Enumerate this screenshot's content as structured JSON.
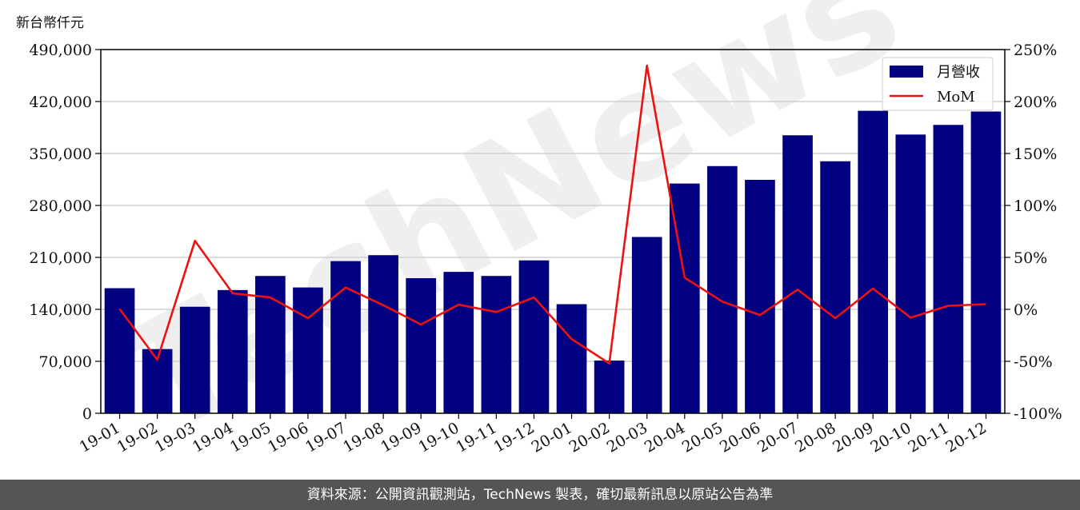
{
  "unit_label": "新台幣仟元",
  "footer_text": "資料來源：公開資訊觀測站，TechNews 製表，確切最新訊息以原站公告為準",
  "watermark_text": "TechNews",
  "colors": {
    "bar": "#000080",
    "line": "#ee1111",
    "grid": "#d0d0d0",
    "footer_bg": "#555555"
  },
  "chart_data": {
    "type": "bar",
    "categories": [
      "19-01",
      "19-02",
      "19-03",
      "19-04",
      "19-05",
      "19-06",
      "19-07",
      "19-08",
      "19-09",
      "19-10",
      "19-11",
      "19-12",
      "20-01",
      "20-02",
      "20-03",
      "20-04",
      "20-05",
      "20-06",
      "20-07",
      "20-08",
      "20-09",
      "20-10",
      "20-11",
      "20-12"
    ],
    "series": [
      {
        "name": "月營收",
        "type": "bar",
        "axis": "left",
        "values": [
          168500,
          86500,
          143500,
          166000,
          185000,
          169500,
          205000,
          213000,
          182000,
          190500,
          185000,
          206000,
          147000,
          71000,
          237500,
          309500,
          333000,
          314500,
          374500,
          339500,
          407500,
          375500,
          388500,
          406500
        ]
      },
      {
        "name": "MoM",
        "type": "line",
        "axis": "right",
        "values": [
          0.5,
          -48.5,
          66,
          15.5,
          11.5,
          -8.5,
          21,
          4,
          -14.5,
          4.5,
          -2.5,
          11.5,
          -28.5,
          -52,
          234.5,
          30.5,
          7.5,
          -5.5,
          19,
          -8.5,
          20,
          -8,
          3.5,
          5
        ]
      }
    ],
    "yleft": {
      "ylim": [
        0,
        490000
      ],
      "ticks": [
        "0",
        "70,000",
        "140,000",
        "210,000",
        "280,000",
        "350,000",
        "420,000",
        "490,000"
      ]
    },
    "yright": {
      "ylim": [
        -100,
        250
      ],
      "ticks": [
        "-100%",
        "-50%",
        "0%",
        "50%",
        "100%",
        "150%",
        "200%",
        "250%"
      ]
    },
    "grid": true,
    "legend_position": "top-right"
  }
}
